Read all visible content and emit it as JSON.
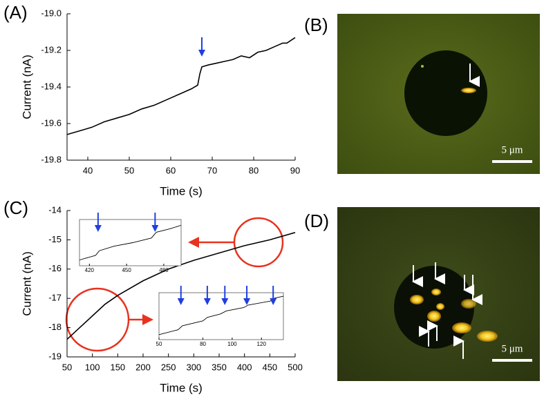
{
  "chart_data": [
    {
      "type": "line",
      "panel_label": "(A)",
      "x_label": "Time (s)",
      "y_label": "Current (nA)",
      "xlim": [
        35,
        90
      ],
      "xticks": [
        40,
        50,
        60,
        70,
        80,
        90
      ],
      "ylim": [
        -19.8,
        -19.0
      ],
      "yticks": [
        -19.8,
        -19.6,
        -19.4,
        -19.2,
        {
          "value": -19.0,
          "label": "-19.0"
        }
      ],
      "x": [
        35,
        38,
        41,
        44,
        47,
        50,
        53,
        56,
        59,
        62,
        65,
        66.5,
        67,
        67.5,
        69,
        71,
        73,
        75,
        77,
        79,
        81,
        83,
        85,
        87,
        88,
        90
      ],
      "values": [
        -19.66,
        -19.64,
        -19.62,
        -19.59,
        -19.57,
        -19.55,
        -19.52,
        -19.5,
        -19.47,
        -19.44,
        -19.41,
        -19.39,
        -19.33,
        -19.29,
        -19.28,
        -19.27,
        -19.26,
        -19.25,
        -19.23,
        -19.24,
        -19.21,
        -19.2,
        -19.18,
        -19.16,
        -19.16,
        -19.13
      ],
      "color": "#000000",
      "event_times": [
        67.5
      ],
      "arrow_color": "#1f3fe0"
    },
    {
      "type": "line",
      "panel_label": "(C)",
      "x_label": "Time (s)",
      "y_label": "Current (nA)",
      "xlim": [
        50,
        500
      ],
      "xticks": [
        50,
        100,
        150,
        200,
        250,
        300,
        350,
        400,
        450,
        500
      ],
      "ylim": [
        -19,
        -14
      ],
      "yticks": [
        -19,
        -18,
        -17,
        -16,
        -15,
        -14
      ],
      "x": [
        50,
        75,
        100,
        125,
        150,
        200,
        250,
        300,
        350,
        400,
        450,
        500
      ],
      "values": [
        -18.4,
        -18.0,
        -17.6,
        -17.2,
        -16.9,
        -16.4,
        -16.0,
        -15.7,
        -15.45,
        -15.2,
        -15.0,
        -14.75
      ],
      "color": "#000000",
      "insets": [
        {
          "type": "line",
          "xlim": [
            412,
            494
          ],
          "xticks": [
            420,
            450,
            480
          ],
          "ylim": [
            -15.3,
            -14.9
          ],
          "x": [
            412,
            425,
            428,
            440,
            455,
            470,
            474,
            485,
            494
          ],
          "values": [
            -15.25,
            -15.21,
            -15.17,
            -15.13,
            -15.1,
            -15.06,
            -15.01,
            -14.98,
            -14.95
          ],
          "color": "#000000",
          "event_times": [
            427,
            473
          ],
          "arrow_color": "#1f3fe0"
        },
        {
          "type": "line",
          "xlim": [
            50,
            135
          ],
          "xticks": [
            50,
            80,
            100,
            120
          ],
          "ylim": [
            -18.5,
            -17.55
          ],
          "x": [
            50,
            63,
            66,
            80,
            83,
            92,
            96,
            108,
            111,
            126,
            129,
            135
          ],
          "values": [
            -18.4,
            -18.3,
            -18.22,
            -18.12,
            -18.05,
            -17.98,
            -17.92,
            -17.85,
            -17.8,
            -17.72,
            -17.66,
            -17.62
          ],
          "color": "#000000",
          "event_times": [
            65,
            83,
            95,
            110,
            128
          ],
          "arrow_color": "#1f3fe0"
        }
      ]
    }
  ],
  "images": [
    {
      "label": "(B)",
      "scale_bar": "5 μm"
    },
    {
      "label": "(D)",
      "scale_bar": "5 μm"
    }
  ]
}
